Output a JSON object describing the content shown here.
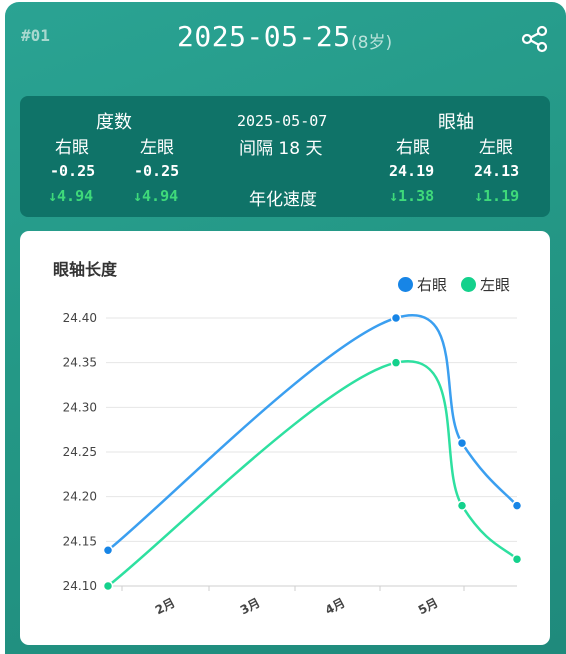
{
  "header": {
    "index": "#01",
    "date": "2025-05-25",
    "age": "(8岁)"
  },
  "summary": {
    "diopter_title": "度数",
    "axial_title": "眼轴",
    "right_label": "右眼",
    "left_label": "左眼",
    "prev_date": "2025-05-07",
    "interval": "间隔 18 天",
    "annual_speed_label": "年化速度",
    "diopter": {
      "right": "-0.25",
      "left": "-0.25",
      "right_change": "↓4.94",
      "left_change": "↓4.94"
    },
    "axial": {
      "right": "24.19",
      "left": "24.13",
      "right_change": "↓1.38",
      "left_change": "↓1.19"
    }
  },
  "chart_data": {
    "type": "line",
    "title": "眼轴长度",
    "x_ticks": [
      "2月",
      "3月",
      "4月",
      "5月"
    ],
    "ylim": [
      24.1,
      24.4
    ],
    "y_ticks": [
      "24.40",
      "24.35",
      "24.30",
      "24.25",
      "24.20",
      "24.15",
      "24.10"
    ],
    "legend_position": "top-right",
    "series": [
      {
        "name": "右眼",
        "color": "#3b9ff0",
        "marker_color": "#1785e6",
        "values": [
          24.14,
          24.4,
          24.26,
          24.19
        ]
      },
      {
        "name": "左眼",
        "color": "#2ee0a0",
        "marker_color": "#14d18c",
        "values": [
          24.1,
          24.35,
          24.19,
          24.13
        ]
      }
    ]
  }
}
